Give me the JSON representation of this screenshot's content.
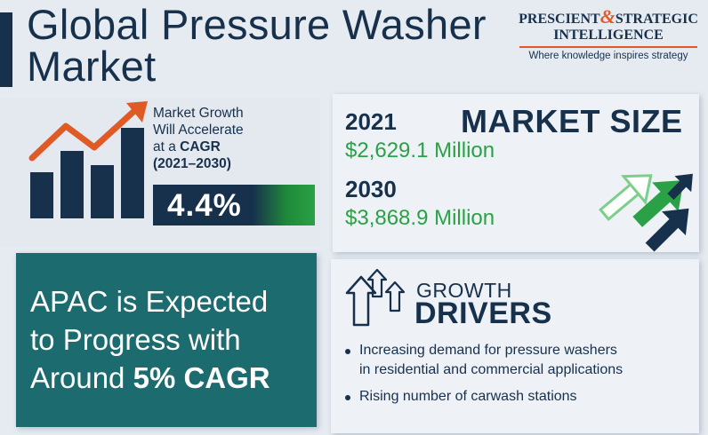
{
  "header": {
    "title_line1": "Global Pressure Washer",
    "title_line2": "Market"
  },
  "logo": {
    "part1": "PRESCIENT",
    "ampersand": "&",
    "part2": "STRATEGIC",
    "part3": "INTELLIGENCE",
    "tagline": "Where knowledge inspires strategy"
  },
  "growth": {
    "line1": "Market Growth",
    "line2": "Will Accelerate",
    "line3_prefix": "at a ",
    "line3_bold": "CAGR",
    "line4": "(2021–2030)",
    "cagr": "4.4%"
  },
  "market_size": {
    "title": "MARKET SIZE",
    "year1": "2021",
    "value1": "$2,629.1 Million",
    "year2": "2030",
    "value2": "$3,868.9 Million"
  },
  "apac": {
    "line1": "APAC is Expected",
    "line2": "to Progress with",
    "line3_prefix": "Around ",
    "line3_bold": "5% CAGR"
  },
  "drivers": {
    "kicker": "GROWTH",
    "title": "DRIVERS",
    "items": [
      {
        "line1": "Increasing demand for pressure washers",
        "line2": "in residential and commercial applications"
      },
      {
        "line1": "Rising number of carwash stations",
        "line2": ""
      }
    ]
  },
  "colors": {
    "navy": "#17314d",
    "green": "#2aa146",
    "teal": "#1c6b6e",
    "orange": "#e05a25",
    "background": "#e6ebf1"
  }
}
